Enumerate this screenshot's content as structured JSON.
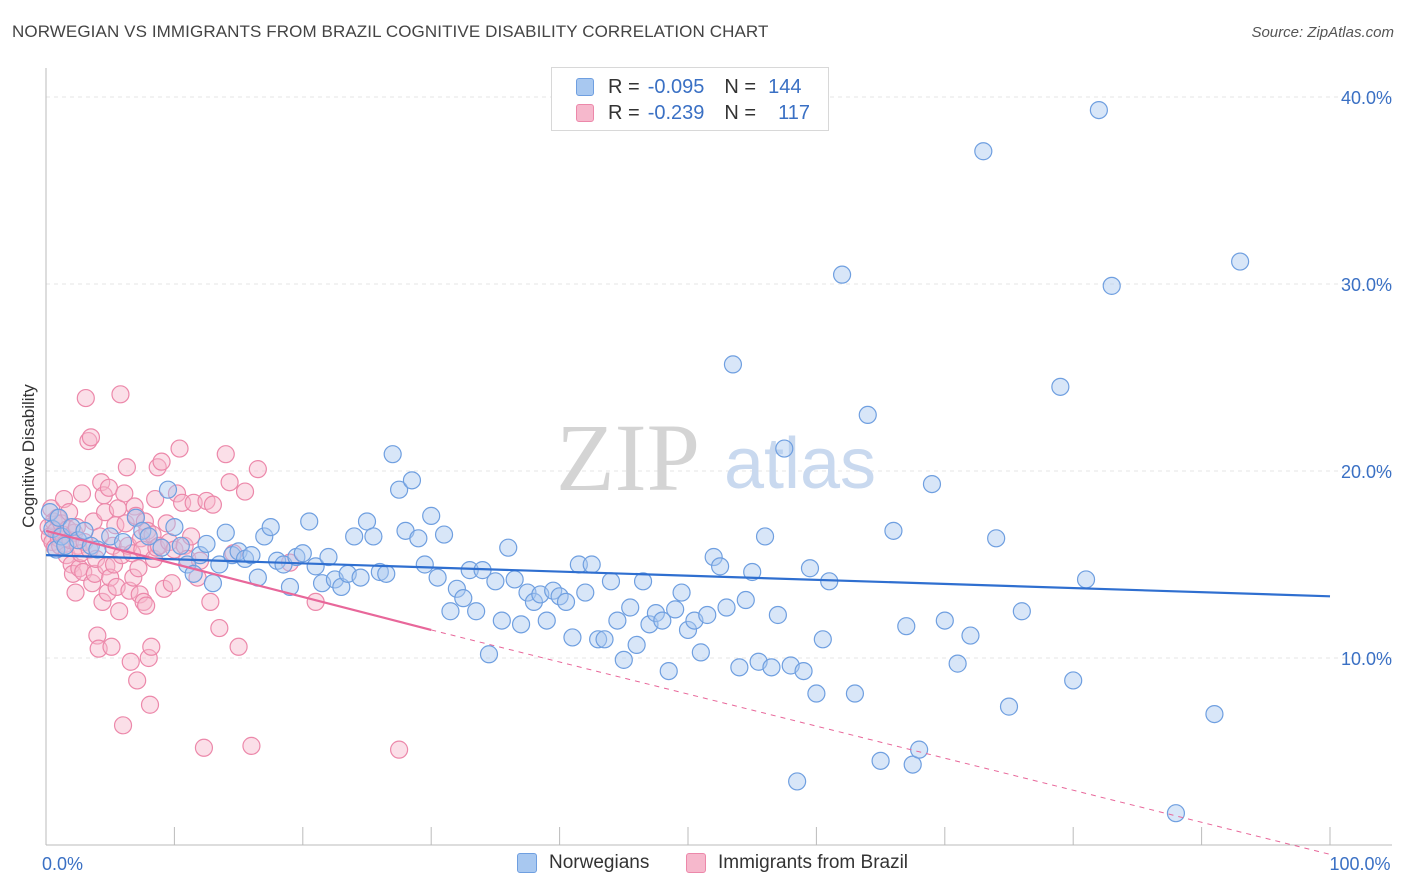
{
  "title": "NORWEGIAN VS IMMIGRANTS FROM BRAZIL COGNITIVE DISABILITY CORRELATION CHART",
  "source": "Source: ZipAtlas.com",
  "watermark": {
    "zip": "ZIP",
    "atlas": "atlas"
  },
  "colors": {
    "blue_fill": "#a8c8f0",
    "blue_stroke": "#6f9fe0",
    "blue_line": "#2f6fd0",
    "pink_fill": "#f6b8cc",
    "pink_stroke": "#ec88aa",
    "pink_line": "#e8679a",
    "axis_text": "#3a70c4",
    "grid": "#e6e6e6"
  },
  "legend": {
    "rows": [
      {
        "r_label": "R =",
        "r_value": "-0.095",
        "n_label": "N =",
        "n_value": "144"
      },
      {
        "r_label": "R =",
        "r_value": "-0.239",
        "n_label": "N =",
        "n_value": "117"
      }
    ]
  },
  "bottom_legend": [
    "Norwegians",
    "Immigrants from Brazil"
  ],
  "chart_data": {
    "type": "scatter",
    "ylabel": "Cognitive Disability",
    "xlim": [
      0,
      100
    ],
    "ylim": [
      0,
      40
    ],
    "y_tick_labels": [
      "10.0%",
      "20.0%",
      "30.0%",
      "40.0%"
    ],
    "y_ticks": [
      10,
      20,
      30,
      40
    ],
    "x_tick_labels": [
      "0.0%",
      "100.0%"
    ],
    "x_ticks": [
      0,
      100
    ],
    "grid": "horizontal dashed",
    "legend_placement": "top-center",
    "series": [
      {
        "name": "Norwegians",
        "r": -0.095,
        "n": 144,
        "trend": {
          "x": [
            0,
            100
          ],
          "y": [
            15.5,
            13.3
          ]
        },
        "points": [
          [
            0.3,
            17.8
          ],
          [
            0.5,
            16.9
          ],
          [
            0.8,
            15.8
          ],
          [
            1.0,
            17.5
          ],
          [
            1.2,
            16.5
          ],
          [
            1.5,
            16.0
          ],
          [
            2.0,
            17.0
          ],
          [
            2.5,
            16.3
          ],
          [
            3.0,
            16.8
          ],
          [
            3.5,
            16.0
          ],
          [
            4.0,
            15.8
          ],
          [
            5.0,
            16.5
          ],
          [
            6.0,
            16.2
          ],
          [
            7.0,
            17.5
          ],
          [
            7.5,
            16.8
          ],
          [
            8.0,
            16.5
          ],
          [
            9.0,
            15.9
          ],
          [
            9.5,
            19.0
          ],
          [
            10.0,
            17.0
          ],
          [
            10.5,
            16.0
          ],
          [
            11.0,
            15.0
          ],
          [
            11.5,
            14.5
          ],
          [
            12.0,
            15.5
          ],
          [
            12.5,
            16.1
          ],
          [
            13.0,
            14.0
          ],
          [
            13.5,
            15.0
          ],
          [
            14.0,
            16.7
          ],
          [
            14.5,
            15.5
          ],
          [
            15.0,
            15.7
          ],
          [
            15.5,
            15.3
          ],
          [
            16.0,
            15.5
          ],
          [
            16.5,
            14.3
          ],
          [
            17.0,
            16.5
          ],
          [
            17.5,
            17.0
          ],
          [
            18.0,
            15.2
          ],
          [
            18.5,
            15.0
          ],
          [
            19.0,
            13.8
          ],
          [
            19.5,
            15.4
          ],
          [
            20.0,
            15.6
          ],
          [
            20.5,
            17.3
          ],
          [
            21.0,
            14.9
          ],
          [
            21.5,
            14.0
          ],
          [
            22.0,
            15.4
          ],
          [
            22.5,
            14.2
          ],
          [
            23.0,
            13.8
          ],
          [
            23.5,
            14.5
          ],
          [
            24.0,
            16.5
          ],
          [
            24.5,
            14.3
          ],
          [
            25.0,
            17.3
          ],
          [
            25.5,
            16.5
          ],
          [
            26.0,
            14.6
          ],
          [
            26.5,
            14.5
          ],
          [
            27.0,
            20.9
          ],
          [
            27.5,
            19.0
          ],
          [
            28.0,
            16.8
          ],
          [
            28.5,
            19.5
          ],
          [
            29.0,
            16.4
          ],
          [
            29.5,
            15.0
          ],
          [
            30.0,
            17.6
          ],
          [
            30.5,
            14.3
          ],
          [
            31.0,
            16.6
          ],
          [
            31.5,
            12.5
          ],
          [
            32.0,
            13.7
          ],
          [
            32.5,
            13.2
          ],
          [
            33.0,
            14.7
          ],
          [
            33.5,
            12.5
          ],
          [
            34.0,
            14.7
          ],
          [
            34.5,
            10.2
          ],
          [
            35.0,
            14.1
          ],
          [
            35.5,
            12.0
          ],
          [
            36.0,
            15.9
          ],
          [
            36.5,
            14.2
          ],
          [
            37.0,
            11.8
          ],
          [
            37.5,
            13.5
          ],
          [
            38.0,
            13.0
          ],
          [
            38.5,
            13.4
          ],
          [
            39.0,
            12.0
          ],
          [
            39.5,
            13.6
          ],
          [
            40.0,
            13.3
          ],
          [
            40.5,
            13.0
          ],
          [
            41.0,
            11.1
          ],
          [
            41.5,
            15.0
          ],
          [
            42.0,
            13.5
          ],
          [
            42.5,
            15.0
          ],
          [
            43.0,
            11.0
          ],
          [
            43.5,
            11.0
          ],
          [
            44.0,
            14.1
          ],
          [
            44.5,
            12.0
          ],
          [
            45.0,
            9.9
          ],
          [
            45.5,
            12.7
          ],
          [
            46.0,
            10.7
          ],
          [
            46.5,
            14.1
          ],
          [
            47.0,
            11.8
          ],
          [
            47.5,
            12.4
          ],
          [
            48.0,
            12.0
          ],
          [
            48.5,
            9.3
          ],
          [
            49.0,
            12.6
          ],
          [
            49.5,
            13.5
          ],
          [
            50.0,
            11.5
          ],
          [
            50.5,
            12.0
          ],
          [
            51.0,
            10.3
          ],
          [
            51.5,
            12.3
          ],
          [
            52.0,
            15.4
          ],
          [
            52.5,
            14.9
          ],
          [
            53.0,
            12.7
          ],
          [
            53.5,
            25.7
          ],
          [
            54.0,
            9.5
          ],
          [
            54.5,
            13.1
          ],
          [
            55.0,
            14.6
          ],
          [
            55.5,
            9.8
          ],
          [
            56.0,
            16.5
          ],
          [
            56.5,
            9.5
          ],
          [
            57.0,
            12.3
          ],
          [
            57.5,
            21.2
          ],
          [
            58.0,
            9.6
          ],
          [
            58.5,
            3.4
          ],
          [
            59.0,
            9.3
          ],
          [
            59.5,
            14.8
          ],
          [
            60.0,
            8.1
          ],
          [
            60.5,
            11.0
          ],
          [
            61.0,
            14.1
          ],
          [
            62.0,
            30.5
          ],
          [
            63.0,
            8.1
          ],
          [
            64.0,
            23.0
          ],
          [
            65.0,
            4.5
          ],
          [
            66.0,
            16.8
          ],
          [
            67.0,
            11.7
          ],
          [
            67.5,
            4.3
          ],
          [
            68.0,
            5.1
          ],
          [
            69.0,
            19.3
          ],
          [
            70.0,
            12.0
          ],
          [
            71.0,
            9.7
          ],
          [
            72.0,
            11.2
          ],
          [
            73.0,
            37.1
          ],
          [
            74.0,
            16.4
          ],
          [
            75.0,
            7.4
          ],
          [
            76.0,
            12.5
          ],
          [
            79.0,
            24.5
          ],
          [
            80.0,
            8.8
          ],
          [
            81.0,
            14.2
          ],
          [
            82.0,
            39.3
          ],
          [
            83.0,
            29.9
          ],
          [
            88.0,
            1.7
          ],
          [
            91.0,
            7.0
          ],
          [
            93.0,
            31.2
          ]
        ]
      },
      {
        "name": "Immigrants from Brazil",
        "r": -0.239,
        "n": 117,
        "trend": {
          "x": [
            0,
            30
          ],
          "y": [
            16.8,
            11.5
          ]
        },
        "trend_extended": {
          "x": [
            30,
            100
          ],
          "y": [
            11.5,
            -0.5
          ]
        },
        "points": [
          [
            0.2,
            17.0
          ],
          [
            0.3,
            16.5
          ],
          [
            0.4,
            18.0
          ],
          [
            0.5,
            16.2
          ],
          [
            0.6,
            17.3
          ],
          [
            0.7,
            15.9
          ],
          [
            0.8,
            16.8
          ],
          [
            0.9,
            17.5
          ],
          [
            1.0,
            16.4
          ],
          [
            1.1,
            16.0
          ],
          [
            1.2,
            17.2
          ],
          [
            1.3,
            16.6
          ],
          [
            1.4,
            18.5
          ],
          [
            1.5,
            16.1
          ],
          [
            1.6,
            15.5
          ],
          [
            1.7,
            16.9
          ],
          [
            1.8,
            17.8
          ],
          [
            1.9,
            16.3
          ],
          [
            2.0,
            15.0
          ],
          [
            2.1,
            14.5
          ],
          [
            2.2,
            16.7
          ],
          [
            2.3,
            13.5
          ],
          [
            2.4,
            17.0
          ],
          [
            2.5,
            16.0
          ],
          [
            2.6,
            14.8
          ],
          [
            2.7,
            15.6
          ],
          [
            2.8,
            18.8
          ],
          [
            2.9,
            14.6
          ],
          [
            3.0,
            16.2
          ],
          [
            3.1,
            23.9
          ],
          [
            3.3,
            21.6
          ],
          [
            3.4,
            15.8
          ],
          [
            3.5,
            21.8
          ],
          [
            3.6,
            14.0
          ],
          [
            3.7,
            17.3
          ],
          [
            3.8,
            14.5
          ],
          [
            3.9,
            15.3
          ],
          [
            4.0,
            11.2
          ],
          [
            4.1,
            10.5
          ],
          [
            4.2,
            16.5
          ],
          [
            4.3,
            19.4
          ],
          [
            4.4,
            13.0
          ],
          [
            4.5,
            18.7
          ],
          [
            4.6,
            17.8
          ],
          [
            4.7,
            14.9
          ],
          [
            4.8,
            13.5
          ],
          [
            4.9,
            19.1
          ],
          [
            5.0,
            14.3
          ],
          [
            5.1,
            10.6
          ],
          [
            5.2,
            16.0
          ],
          [
            5.3,
            15.0
          ],
          [
            5.4,
            17.1
          ],
          [
            5.5,
            13.8
          ],
          [
            5.6,
            18.0
          ],
          [
            5.7,
            12.5
          ],
          [
            5.8,
            24.1
          ],
          [
            5.9,
            15.5
          ],
          [
            6.0,
            6.4
          ],
          [
            6.1,
            18.8
          ],
          [
            6.2,
            17.2
          ],
          [
            6.3,
            20.2
          ],
          [
            6.4,
            16.0
          ],
          [
            6.5,
            13.6
          ],
          [
            6.6,
            9.8
          ],
          [
            6.7,
            15.6
          ],
          [
            6.8,
            14.3
          ],
          [
            6.9,
            18.1
          ],
          [
            7.0,
            17.6
          ],
          [
            7.1,
            8.8
          ],
          [
            7.2,
            14.8
          ],
          [
            7.3,
            13.4
          ],
          [
            7.4,
            16.4
          ],
          [
            7.5,
            15.8
          ],
          [
            7.6,
            13.0
          ],
          [
            7.7,
            17.3
          ],
          [
            7.8,
            12.8
          ],
          [
            7.9,
            16.8
          ],
          [
            8.0,
            10.0
          ],
          [
            8.1,
            7.5
          ],
          [
            8.2,
            10.6
          ],
          [
            8.3,
            16.6
          ],
          [
            8.4,
            15.3
          ],
          [
            8.5,
            18.5
          ],
          [
            8.6,
            15.9
          ],
          [
            8.7,
            20.2
          ],
          [
            8.8,
            16.0
          ],
          [
            9.0,
            20.5
          ],
          [
            9.2,
            13.7
          ],
          [
            9.4,
            17.2
          ],
          [
            9.6,
            16.2
          ],
          [
            9.8,
            14.0
          ],
          [
            10.0,
            15.8
          ],
          [
            10.2,
            18.8
          ],
          [
            10.4,
            21.2
          ],
          [
            10.6,
            18.3
          ],
          [
            10.8,
            16.0
          ],
          [
            11.0,
            15.3
          ],
          [
            11.3,
            16.5
          ],
          [
            11.5,
            18.3
          ],
          [
            11.8,
            14.3
          ],
          [
            12.0,
            15.2
          ],
          [
            12.3,
            5.2
          ],
          [
            12.5,
            18.4
          ],
          [
            12.8,
            13.0
          ],
          [
            13.0,
            18.2
          ],
          [
            13.5,
            11.6
          ],
          [
            14.0,
            20.9
          ],
          [
            14.3,
            19.4
          ],
          [
            14.6,
            15.6
          ],
          [
            15.0,
            10.6
          ],
          [
            15.5,
            18.9
          ],
          [
            16.0,
            5.3
          ],
          [
            16.5,
            20.1
          ],
          [
            19.0,
            15.1
          ],
          [
            21.0,
            13.0
          ],
          [
            27.5,
            5.1
          ]
        ]
      }
    ]
  }
}
